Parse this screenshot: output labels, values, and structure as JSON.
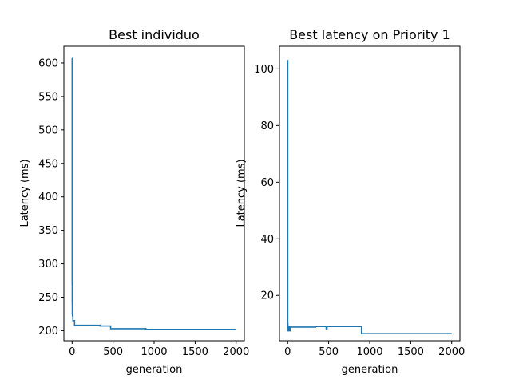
{
  "chart_data": [
    {
      "type": "line",
      "title": "Best individuo",
      "xlabel": "generation",
      "ylabel": "Latency (ms)",
      "xlim": [
        -100,
        2100
      ],
      "ylim": [
        185,
        625
      ],
      "xticks": [
        0,
        500,
        1000,
        1500,
        2000
      ],
      "yticks": [
        200,
        250,
        300,
        350,
        400,
        450,
        500,
        550,
        600
      ],
      "grid": false,
      "color": "#1f77b4",
      "series": [
        {
          "x": [
            0,
            1,
            1,
            2,
            2,
            3,
            3,
            5,
            5,
            10,
            10,
            30,
            30,
            340,
            340,
            470,
            470,
            900,
            900,
            2000
          ],
          "y": [
            607,
            607,
            270,
            270,
            240,
            240,
            225,
            225,
            222,
            222,
            215,
            215,
            208,
            208,
            207,
            207,
            203,
            203,
            202,
            202
          ]
        }
      ]
    },
    {
      "type": "line",
      "title": "Best latency on Priority 1",
      "xlabel": "generation",
      "ylabel": "Latency (ms)",
      "xlim": [
        -100,
        2100
      ],
      "ylim": [
        4,
        108
      ],
      "xticks": [
        0,
        500,
        1000,
        1500,
        2000
      ],
      "yticks": [
        20,
        40,
        60,
        80,
        100
      ],
      "grid": false,
      "color": "#1f77b4",
      "series": [
        {
          "x": [
            0,
            1,
            1,
            3,
            3,
            10,
            10,
            20,
            20,
            30,
            30,
            340,
            340,
            470,
            470,
            480,
            480,
            900,
            900,
            2000
          ],
          "y": [
            103,
            103,
            10,
            10,
            7.5,
            7.5,
            9,
            9,
            7.5,
            7.5,
            8.8,
            8.8,
            9.0,
            9.0,
            8.2,
            8.2,
            9.0,
            9.0,
            6.5,
            6.5
          ]
        }
      ]
    }
  ]
}
